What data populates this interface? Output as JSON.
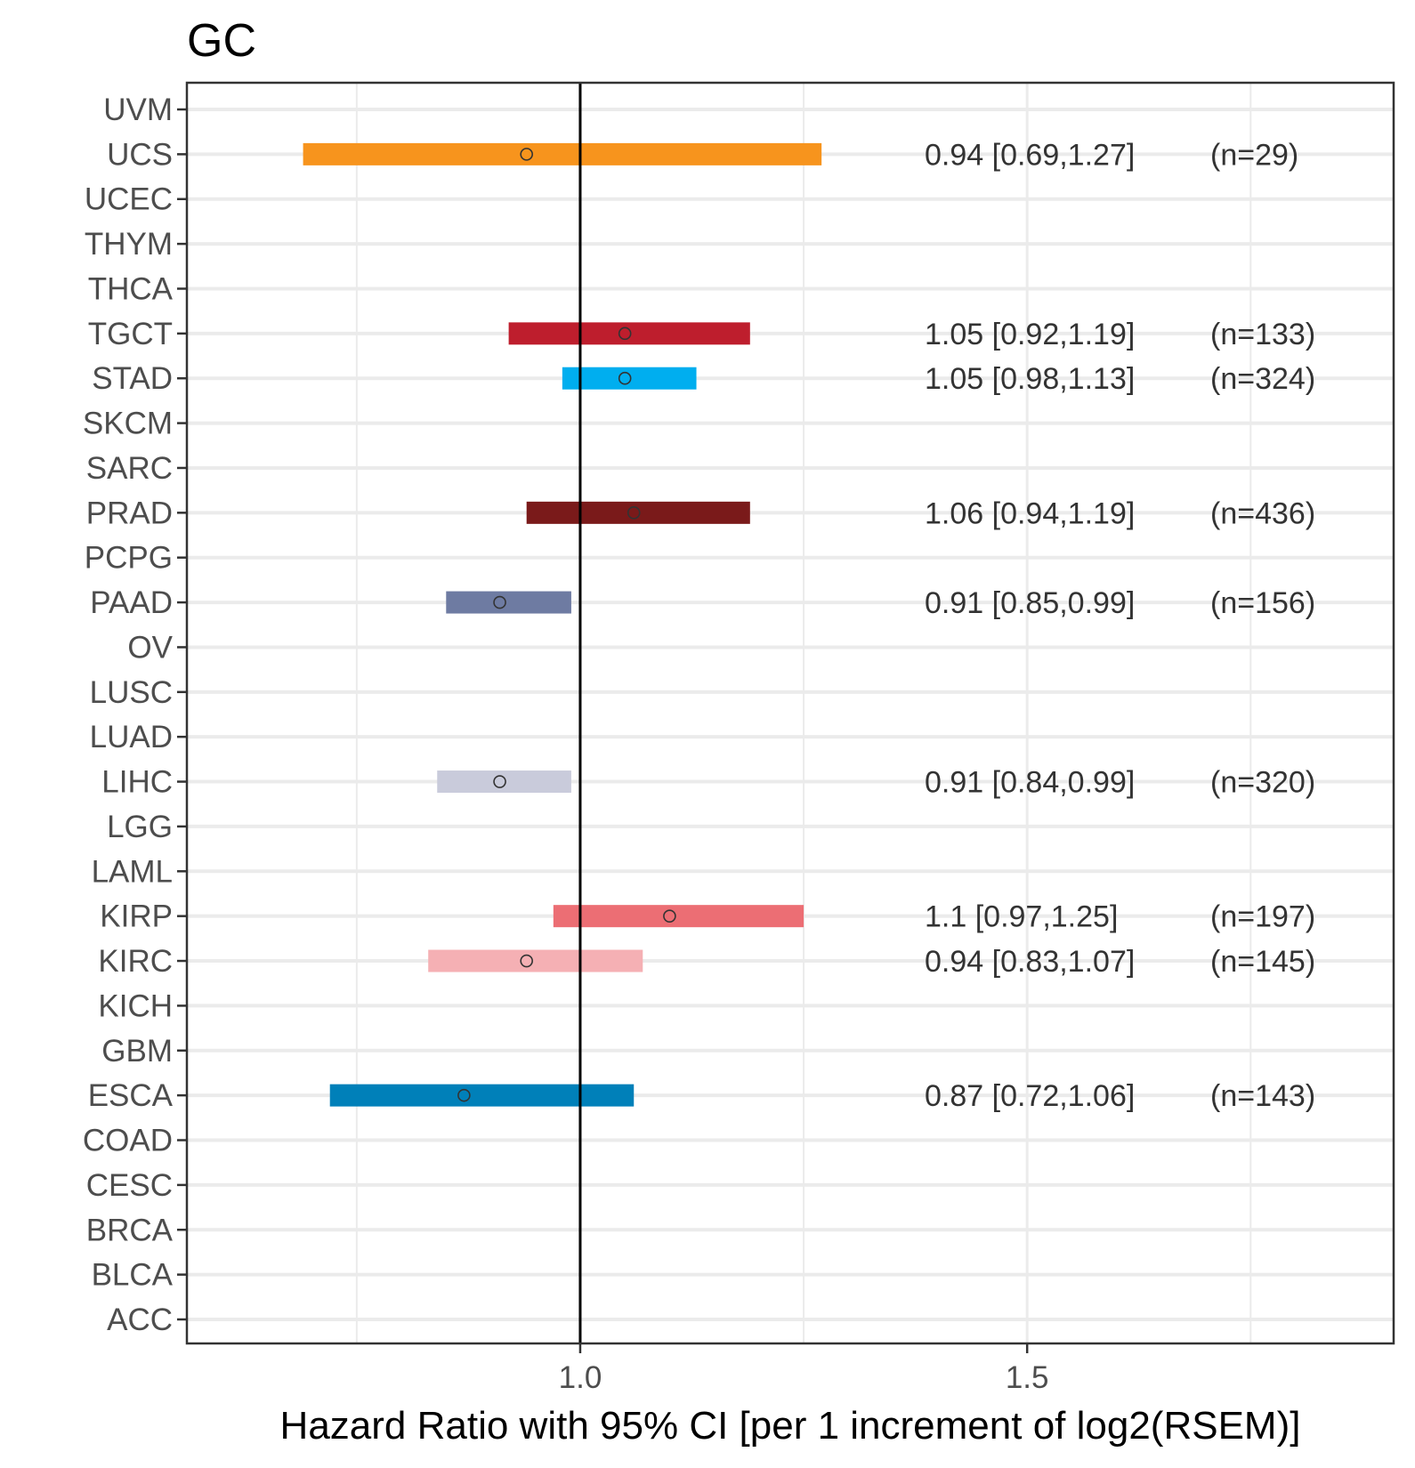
{
  "chart_data": {
    "type": "forest",
    "title": "GC",
    "xlabel": "Hazard Ratio with 95% CI [per 1 increment of log2(RSEM)]",
    "xlim": [
      0.56,
      1.91
    ],
    "xticks": [
      1.0,
      1.5
    ],
    "xtick_labels": [
      "1.0",
      "1.5"
    ],
    "minor_gridlines": [
      0.75,
      1.25,
      1.75
    ],
    "reference_line": 1.0,
    "grid": true,
    "categories": [
      "UVM",
      "UCS",
      "UCEC",
      "THYM",
      "THCA",
      "TGCT",
      "STAD",
      "SKCM",
      "SARC",
      "PRAD",
      "PCPG",
      "PAAD",
      "OV",
      "LUSC",
      "LUAD",
      "LIHC",
      "LGG",
      "LAML",
      "KIRP",
      "KIRC",
      "KICH",
      "GBM",
      "ESCA",
      "COAD",
      "CESC",
      "BRCA",
      "BLCA",
      "ACC"
    ],
    "series": [
      {
        "name": "UCS",
        "hr": 0.94,
        "lo": 0.69,
        "hi": 1.27,
        "label": "0.94 [0.69,1.27]",
        "n": "(n=29)",
        "color": "#F7941D"
      },
      {
        "name": "TGCT",
        "hr": 1.05,
        "lo": 0.92,
        "hi": 1.19,
        "label": "1.05 [0.92,1.19]",
        "n": "(n=133)",
        "color": "#BE1E2D"
      },
      {
        "name": "STAD",
        "hr": 1.05,
        "lo": 0.98,
        "hi": 1.13,
        "label": "1.05 [0.98,1.13]",
        "n": "(n=324)",
        "color": "#00AEEF"
      },
      {
        "name": "PRAD",
        "hr": 1.06,
        "lo": 0.94,
        "hi": 1.19,
        "label": "1.06 [0.94,1.19]",
        "n": "(n=436)",
        "color": "#7A1A1A"
      },
      {
        "name": "PAAD",
        "hr": 0.91,
        "lo": 0.85,
        "hi": 0.99,
        "label": "0.91 [0.85,0.99]",
        "n": "(n=156)",
        "color": "#6E7BA2"
      },
      {
        "name": "LIHC",
        "hr": 0.91,
        "lo": 0.84,
        "hi": 0.99,
        "label": "0.91 [0.84,0.99]",
        "n": "(n=320)",
        "color": "#C9CBDB"
      },
      {
        "name": "KIRP",
        "hr": 1.1,
        "lo": 0.97,
        "hi": 1.25,
        "label": "1.1 [0.97,1.25]",
        "n": "(n=197)",
        "color": "#EC6E74"
      },
      {
        "name": "KIRC",
        "hr": 0.94,
        "lo": 0.83,
        "hi": 1.07,
        "label": "0.94 [0.83,1.07]",
        "n": "(n=145)",
        "color": "#F5B0B4"
      },
      {
        "name": "ESCA",
        "hr": 0.87,
        "lo": 0.72,
        "hi": 1.06,
        "label": "0.87 [0.72,1.06]",
        "n": "(n=143)",
        "color": "#0080B9"
      }
    ]
  }
}
